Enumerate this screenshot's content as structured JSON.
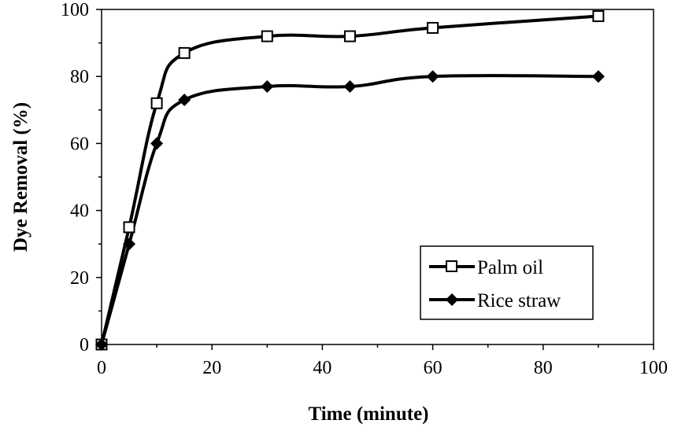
{
  "chart_data": {
    "type": "line",
    "title": "",
    "xlabel": "Time (minute)",
    "ylabel": "Dye Removal (%)",
    "xlim": [
      0,
      100
    ],
    "ylim": [
      0,
      100
    ],
    "xticks": [
      "0",
      "20",
      "40",
      "60",
      "80",
      "100"
    ],
    "yticks": [
      "0",
      "20",
      "40",
      "60",
      "80",
      "100"
    ],
    "grid": false,
    "legend_position": "bottom-right",
    "line_style": "smoothed",
    "colors": {
      "line": "#000000",
      "marker_fill_open": "#ffffff"
    },
    "x": [
      0,
      5,
      10,
      15,
      30,
      45,
      60,
      90
    ],
    "series": [
      {
        "name": "Palm oil",
        "marker": "open-square",
        "values": [
          0,
          35,
          72,
          87,
          92,
          92,
          94.5,
          98
        ]
      },
      {
        "name": "Rice straw",
        "marker": "filled-diamond",
        "values": [
          0,
          30,
          60,
          73,
          77,
          77,
          80,
          80
        ]
      }
    ]
  }
}
